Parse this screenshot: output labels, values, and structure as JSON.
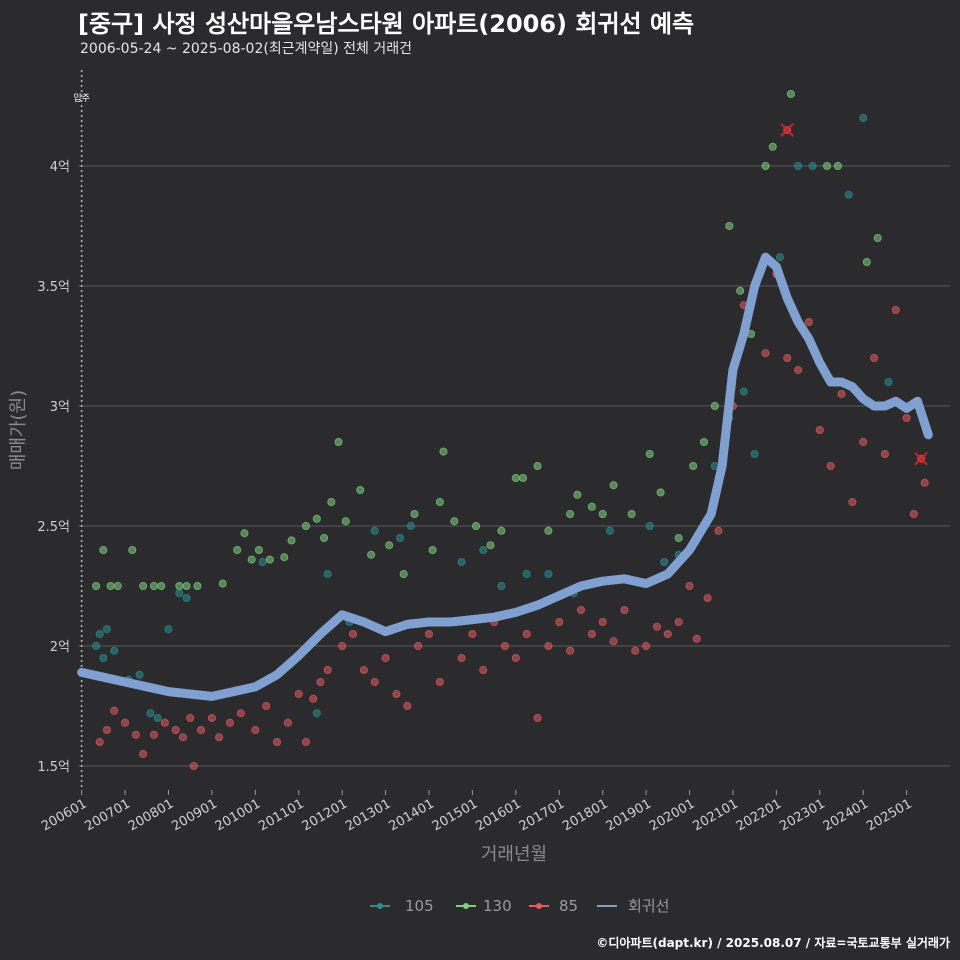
{
  "header": {
    "title": "[중구] 사정 성산마을우남스타원 아파트(2006) 회귀선 예측",
    "subtitle": "2006-05-24 ~ 2025-08-02(최근계약일) 전체 거래건"
  },
  "caption": "©디아파트(dapt.kr) / 2025.08.07 / 자료=국토교통부 실거래가",
  "colors": {
    "background": "#2b2b2d",
    "grid": "#5a5a5a",
    "s105": "#2a8e8e",
    "s130": "#7ed07e",
    "s85": "#e05a5f",
    "regression": "#7fa0d0",
    "marker_x": "#d81f26"
  },
  "chart_data": {
    "type": "scatter",
    "title": "[중구] 사정 성산마을우남스타원 아파트(2006) 회귀선 예측",
    "subtitle": "2006-05-24 ~ 2025-08-02(최근계약일) 전체 거래건",
    "xlabel": "거래년월",
    "ylabel": "매매가(원)",
    "xlim": [
      "2005-12-01",
      "2025-12-31"
    ],
    "ylim": [
      1.4,
      4.4
    ],
    "y_ticks": [
      1.5,
      2.0,
      2.5,
      3.0,
      3.5,
      4.0
    ],
    "y_tick_labels": [
      "1.5억",
      "2억",
      "2.5억",
      "3억",
      "3.5억",
      "4억"
    ],
    "x_tick_labels": [
      "200601",
      "200701",
      "200801",
      "200901",
      "201001",
      "201101",
      "201201",
      "201301",
      "201401",
      "201501",
      "201601",
      "201701",
      "201801",
      "201901",
      "202001",
      "202101",
      "202201",
      "202301",
      "202401",
      "202501"
    ],
    "grid": "horizontal",
    "legend_position": "bottom",
    "annotation": {
      "label": "입주",
      "date": "2006-01"
    },
    "series": [
      {
        "name": "105",
        "points": [
          [
            "2006-05",
            2.0
          ],
          [
            "2006-06",
            2.05
          ],
          [
            "2006-07",
            1.95
          ],
          [
            "2006-08",
            2.07
          ],
          [
            "2006-10",
            1.98
          ],
          [
            "2007-02",
            1.86
          ],
          [
            "2007-05",
            1.88
          ],
          [
            "2007-08",
            1.72
          ],
          [
            "2007-10",
            1.7
          ],
          [
            "2008-01",
            2.07
          ],
          [
            "2008-04",
            2.22
          ],
          [
            "2008-06",
            2.2
          ],
          [
            "2010-03",
            2.35
          ],
          [
            "2011-06",
            1.72
          ],
          [
            "2011-09",
            2.3
          ],
          [
            "2012-03",
            2.1
          ],
          [
            "2012-10",
            2.48
          ],
          [
            "2013-05",
            2.45
          ],
          [
            "2013-08",
            2.5
          ],
          [
            "2014-10",
            2.35
          ],
          [
            "2015-04",
            2.4
          ],
          [
            "2015-09",
            2.25
          ],
          [
            "2016-04",
            2.3
          ],
          [
            "2016-10",
            2.3
          ],
          [
            "2017-05",
            2.22
          ],
          [
            "2018-03",
            2.48
          ],
          [
            "2019-02",
            2.5
          ],
          [
            "2019-06",
            2.35
          ],
          [
            "2019-10",
            2.38
          ],
          [
            "2020-08",
            2.75
          ],
          [
            "2020-12",
            2.95
          ],
          [
            "2021-04",
            3.06
          ],
          [
            "2021-07",
            2.8
          ],
          [
            "2022-02",
            3.62
          ],
          [
            "2022-07",
            4.0
          ],
          [
            "2022-11",
            4.0
          ],
          [
            "2023-09",
            3.88
          ],
          [
            "2024-01",
            4.2
          ],
          [
            "2024-08",
            3.1
          ]
        ]
      },
      {
        "name": "130",
        "points": [
          [
            "2006-05",
            2.25
          ],
          [
            "2006-07",
            2.4
          ],
          [
            "2006-09",
            2.25
          ],
          [
            "2006-11",
            2.25
          ],
          [
            "2007-03",
            2.4
          ],
          [
            "2007-06",
            2.25
          ],
          [
            "2007-09",
            2.25
          ],
          [
            "2007-11",
            2.25
          ],
          [
            "2008-04",
            2.25
          ],
          [
            "2008-06",
            2.25
          ],
          [
            "2008-09",
            2.25
          ],
          [
            "2009-04",
            2.26
          ],
          [
            "2009-08",
            2.4
          ],
          [
            "2009-10",
            2.47
          ],
          [
            "2009-12",
            2.36
          ],
          [
            "2010-02",
            2.4
          ],
          [
            "2010-05",
            2.36
          ],
          [
            "2010-09",
            2.37
          ],
          [
            "2010-11",
            2.44
          ],
          [
            "2011-03",
            2.5
          ],
          [
            "2011-06",
            2.53
          ],
          [
            "2011-08",
            2.45
          ],
          [
            "2011-10",
            2.6
          ],
          [
            "2011-12",
            2.85
          ],
          [
            "2012-02",
            2.52
          ],
          [
            "2012-06",
            2.65
          ],
          [
            "2012-09",
            2.38
          ],
          [
            "2013-02",
            2.42
          ],
          [
            "2013-06",
            2.3
          ],
          [
            "2013-09",
            2.55
          ],
          [
            "2014-02",
            2.4
          ],
          [
            "2014-04",
            2.6
          ],
          [
            "2014-05",
            2.81
          ],
          [
            "2014-08",
            2.52
          ],
          [
            "2015-02",
            2.5
          ],
          [
            "2015-06",
            2.42
          ],
          [
            "2015-09",
            2.48
          ],
          [
            "2016-01",
            2.7
          ],
          [
            "2016-03",
            2.7
          ],
          [
            "2016-07",
            2.75
          ],
          [
            "2016-10",
            2.48
          ],
          [
            "2017-04",
            2.55
          ],
          [
            "2017-06",
            2.63
          ],
          [
            "2017-10",
            2.58
          ],
          [
            "2018-01",
            2.55
          ],
          [
            "2018-04",
            2.67
          ],
          [
            "2018-09",
            2.55
          ],
          [
            "2019-02",
            2.8
          ],
          [
            "2019-05",
            2.64
          ],
          [
            "2019-10",
            2.45
          ],
          [
            "2020-02",
            2.75
          ],
          [
            "2020-05",
            2.85
          ],
          [
            "2020-08",
            3.0
          ],
          [
            "2020-12",
            3.75
          ],
          [
            "2021-03",
            3.48
          ],
          [
            "2021-06",
            3.3
          ],
          [
            "2021-10",
            4.0
          ],
          [
            "2021-12",
            4.08
          ],
          [
            "2022-05",
            4.3
          ],
          [
            "2023-03",
            4.0
          ],
          [
            "2023-06",
            4.0
          ],
          [
            "2024-02",
            3.6
          ],
          [
            "2024-05",
            3.7
          ]
        ]
      },
      {
        "name": "85",
        "points": [
          [
            "2006-06",
            1.6
          ],
          [
            "2006-08",
            1.65
          ],
          [
            "2006-10",
            1.73
          ],
          [
            "2007-01",
            1.68
          ],
          [
            "2007-04",
            1.63
          ],
          [
            "2007-06",
            1.55
          ],
          [
            "2007-09",
            1.63
          ],
          [
            "2007-12",
            1.68
          ],
          [
            "2008-03",
            1.65
          ],
          [
            "2008-05",
            1.62
          ],
          [
            "2008-07",
            1.7
          ],
          [
            "2008-08",
            1.5
          ],
          [
            "2008-10",
            1.65
          ],
          [
            "2009-01",
            1.7
          ],
          [
            "2009-03",
            1.62
          ],
          [
            "2009-06",
            1.68
          ],
          [
            "2009-09",
            1.72
          ],
          [
            "2010-01",
            1.65
          ],
          [
            "2010-04",
            1.75
          ],
          [
            "2010-07",
            1.6
          ],
          [
            "2010-10",
            1.68
          ],
          [
            "2011-01",
            1.8
          ],
          [
            "2011-03",
            1.6
          ],
          [
            "2011-05",
            1.78
          ],
          [
            "2011-07",
            1.85
          ],
          [
            "2011-09",
            1.9
          ],
          [
            "2012-01",
            2.0
          ],
          [
            "2012-04",
            2.05
          ],
          [
            "2012-07",
            1.9
          ],
          [
            "2012-10",
            1.85
          ],
          [
            "2013-01",
            1.95
          ],
          [
            "2013-04",
            1.8
          ],
          [
            "2013-07",
            1.75
          ],
          [
            "2013-10",
            2.0
          ],
          [
            "2014-01",
            2.05
          ],
          [
            "2014-04",
            1.85
          ],
          [
            "2014-07",
            2.1
          ],
          [
            "2014-10",
            1.95
          ],
          [
            "2015-01",
            2.05
          ],
          [
            "2015-04",
            1.9
          ],
          [
            "2015-07",
            2.1
          ],
          [
            "2015-10",
            2.0
          ],
          [
            "2016-01",
            1.95
          ],
          [
            "2016-04",
            2.05
          ],
          [
            "2016-07",
            1.7
          ],
          [
            "2016-10",
            2.0
          ],
          [
            "2017-01",
            2.1
          ],
          [
            "2017-04",
            1.98
          ],
          [
            "2017-07",
            2.15
          ],
          [
            "2017-10",
            2.05
          ],
          [
            "2018-01",
            2.1
          ],
          [
            "2018-04",
            2.02
          ],
          [
            "2018-07",
            2.15
          ],
          [
            "2018-10",
            1.98
          ],
          [
            "2019-01",
            2.0
          ],
          [
            "2019-04",
            2.08
          ],
          [
            "2019-07",
            2.05
          ],
          [
            "2019-10",
            2.1
          ],
          [
            "2020-01",
            2.25
          ],
          [
            "2020-03",
            2.03
          ],
          [
            "2020-06",
            2.2
          ],
          [
            "2020-09",
            2.48
          ],
          [
            "2021-01",
            3.0
          ],
          [
            "2021-04",
            3.42
          ],
          [
            "2021-07",
            3.5
          ],
          [
            "2021-10",
            3.22
          ],
          [
            "2022-01",
            3.55
          ],
          [
            "2022-04",
            3.2
          ],
          [
            "2022-07",
            3.15
          ],
          [
            "2022-10",
            3.35
          ],
          [
            "2023-01",
            2.9
          ],
          [
            "2023-04",
            2.75
          ],
          [
            "2023-07",
            3.05
          ],
          [
            "2023-10",
            2.6
          ],
          [
            "2024-01",
            2.85
          ],
          [
            "2024-04",
            3.2
          ],
          [
            "2024-07",
            2.8
          ],
          [
            "2024-10",
            3.4
          ],
          [
            "2025-01",
            2.95
          ],
          [
            "2025-03",
            2.55
          ],
          [
            "2025-06",
            2.68
          ]
        ]
      },
      {
        "name": "회귀선",
        "points": [
          [
            "2006-01",
            1.89
          ],
          [
            "2006-07",
            1.87
          ],
          [
            "2007-01",
            1.85
          ],
          [
            "2007-07",
            1.83
          ],
          [
            "2008-01",
            1.81
          ],
          [
            "2008-07",
            1.8
          ],
          [
            "2009-01",
            1.79
          ],
          [
            "2009-07",
            1.81
          ],
          [
            "2010-01",
            1.83
          ],
          [
            "2010-07",
            1.88
          ],
          [
            "2011-01",
            1.96
          ],
          [
            "2011-07",
            2.05
          ],
          [
            "2012-01",
            2.13
          ],
          [
            "2012-07",
            2.1
          ],
          [
            "2013-01",
            2.06
          ],
          [
            "2013-07",
            2.09
          ],
          [
            "2014-01",
            2.1
          ],
          [
            "2014-07",
            2.1
          ],
          [
            "2015-01",
            2.11
          ],
          [
            "2015-07",
            2.12
          ],
          [
            "2016-01",
            2.14
          ],
          [
            "2016-07",
            2.17
          ],
          [
            "2017-01",
            2.21
          ],
          [
            "2017-07",
            2.25
          ],
          [
            "2018-01",
            2.27
          ],
          [
            "2018-07",
            2.28
          ],
          [
            "2019-01",
            2.26
          ],
          [
            "2019-07",
            2.3
          ],
          [
            "2020-01",
            2.4
          ],
          [
            "2020-07",
            2.55
          ],
          [
            "2020-10",
            2.75
          ],
          [
            "2021-01",
            3.15
          ],
          [
            "2021-04",
            3.3
          ],
          [
            "2021-07",
            3.5
          ],
          [
            "2021-10",
            3.62
          ],
          [
            "2022-01",
            3.58
          ],
          [
            "2022-04",
            3.45
          ],
          [
            "2022-07",
            3.35
          ],
          [
            "2022-10",
            3.28
          ],
          [
            "2023-01",
            3.18
          ],
          [
            "2023-04",
            3.1
          ],
          [
            "2023-07",
            3.1
          ],
          [
            "2023-10",
            3.08
          ],
          [
            "2024-01",
            3.03
          ],
          [
            "2024-04",
            3.0
          ],
          [
            "2024-07",
            3.0
          ],
          [
            "2024-10",
            3.02
          ],
          [
            "2025-01",
            2.99
          ],
          [
            "2025-04",
            3.02
          ],
          [
            "2025-07",
            2.88
          ]
        ]
      }
    ],
    "highlight_x": [
      [
        "2022-04",
        4.15
      ],
      [
        "2025-05",
        2.78
      ]
    ]
  },
  "legend": [
    {
      "label": "105",
      "key": "s105"
    },
    {
      "label": "130",
      "key": "s130"
    },
    {
      "label": "85",
      "key": "s85"
    },
    {
      "label": "회귀선",
      "key": "regression"
    }
  ]
}
